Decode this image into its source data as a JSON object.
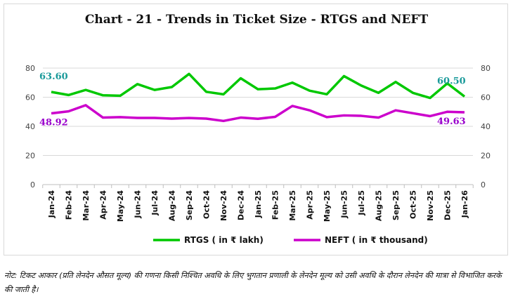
{
  "chart_data": {
    "type": "line",
    "title": "Chart - 21 - Trends in Ticket Size - RTGS and NEFT",
    "categories": [
      "Jan-24",
      "Feb-24",
      "Mar-24",
      "Apr-24",
      "May-24",
      "Jun-24",
      "Jul-24",
      "Aug-24",
      "Sep-24",
      "Oct-24",
      "Nov-24",
      "Dec-24",
      "Jan-25",
      "Feb-25",
      "Mar-25",
      "Apr-25",
      "May-25",
      "Jun-25",
      "Jul-25",
      "Aug-25",
      "Sep-25",
      "Oct-25",
      "Nov-25",
      "Dec-25",
      "Jan-26"
    ],
    "series": [
      {
        "name": "RTGS ( in ₹ lakh)",
        "color": "#00c800",
        "values": [
          63.6,
          61.5,
          65,
          61.3,
          61,
          69,
          65,
          67,
          76,
          63.7,
          62,
          73,
          65.5,
          66,
          70,
          64.5,
          62,
          74.5,
          68,
          63,
          70.5,
          63,
          59.5,
          69.5,
          60.5
        ],
        "start_label": "63.60",
        "end_label": "60.50",
        "label_color": "#1a9a9a"
      },
      {
        "name": "NEFT ( in ₹ thousand)",
        "color": "#cc00cc",
        "values": [
          48.92,
          50.3,
          54.5,
          46,
          46.3,
          45.8,
          45.8,
          45.3,
          45.7,
          45.3,
          43.7,
          46,
          45.2,
          46.5,
          54,
          51,
          46.3,
          47.5,
          47.2,
          46,
          51,
          49,
          47,
          50,
          49.63
        ],
        "start_label": "48.92",
        "end_label": "49.63",
        "label_color": "#9900cc"
      }
    ],
    "yticks": [
      "0",
      "20",
      "40",
      "60",
      "80"
    ],
    "ylim": [
      0,
      80
    ],
    "secondary_y_ticks": [
      "0",
      "20",
      "40",
      "60",
      "80"
    ],
    "grid": true,
    "legend_placement": "bottom"
  },
  "note": "नोट: टिकट आकार (प्रति लेनदेन औसत मूल्य) की गणना किसी निश्चित अवधि के लिए भुगतान प्रणाली के लेनदेन मूल्य को उसी अवधि के दौरान लेनदेन की मात्रा से विभाजित करके की जाती है।"
}
